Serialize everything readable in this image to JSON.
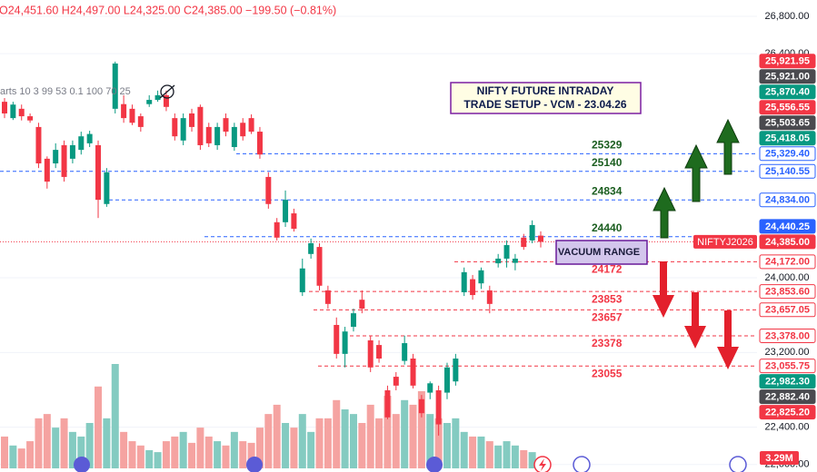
{
  "chart_data": {
    "type": "candlestick",
    "header": "O24,451.60 H24,497.00 L24,325.00 C24,385.00 −199.50 (−0.81%)",
    "header_color": "#f23645",
    "indicator_text": "arts 10 3 99 53 0.1 100 70 25",
    "title_lines": [
      "NIFTY FUTURE INTRADAY",
      "TRADE SETUP - VCM - 23.04.26"
    ],
    "zone_label": "VACUUM RANGE",
    "symbol_label": "NIFTYJ2026",
    "ylim": [
      21920,
      26975
    ],
    "yticks": [
      {
        "value": 26800,
        "label": "26,800.00"
      },
      {
        "value": 26400,
        "label": "26,400.00"
      },
      {
        "value": 24000,
        "label": "24,000.00"
      },
      {
        "value": 23200,
        "label": "23,200.00"
      },
      {
        "value": 22400,
        "label": "22,400.00"
      },
      {
        "value": 22000,
        "label": "22,000.00"
      }
    ],
    "grid": true,
    "up_color": "#089981",
    "down_color": "#f23645",
    "up_volume_color": "#84cbc1",
    "down_volume_color": "#f5a3a1",
    "open": [
      25885,
      25710,
      25810,
      25730,
      25615,
      25275,
      25225,
      25420,
      25275,
      25370,
      25440,
      25420,
      24790,
      25810,
      25860,
      25810,
      25730,
      25860,
      25905,
      25955,
      25710,
      25470,
      25760,
      25830,
      25615,
      25420,
      25710,
      25400,
      25660,
      25710,
      25565,
      25080,
      24595,
      24595,
      24690,
      23845,
      24255,
      24330,
      23865,
      23495,
      23185,
      23475,
      23765,
      23330,
      23280,
      22795,
      22940,
      23110,
      23135,
      22700,
      22770,
      22795,
      22770,
      22890,
      23845,
      23985,
      23940,
      23865,
      24155,
      24205,
      24160,
      24430,
      24400,
      24451.6
    ],
    "high": [
      25925,
      25885,
      25855,
      25760,
      25660,
      25300,
      25440,
      25470,
      25470,
      25565,
      25575,
      25470,
      25175,
      26315,
      25955,
      25855,
      25760,
      25955,
      26005,
      26005,
      25760,
      25760,
      25810,
      25855,
      25660,
      25660,
      25760,
      25660,
      25710,
      25750,
      25615,
      25130,
      24640,
      24935,
      24740,
      24205,
      24420,
      24370,
      23915,
      23575,
      23475,
      23670,
      23865,
      23380,
      23330,
      22845,
      22990,
      23380,
      23185,
      22745,
      22890,
      22845,
      23090,
      23185,
      24110,
      24030,
      24110,
      23915,
      24255,
      24400,
      24255,
      24470,
      24615,
      24497
    ],
    "low": [
      25710,
      25690,
      25685,
      25660,
      25175,
      24955,
      25175,
      25030,
      25225,
      25320,
      25400,
      24640,
      24760,
      25760,
      25660,
      25635,
      25565,
      25830,
      25885,
      25785,
      25470,
      25420,
      25565,
      25370,
      25400,
      25370,
      25515,
      25360,
      25470,
      25540,
      25275,
      24740,
      24400,
      24545,
      24495,
      23805,
      24205,
      23865,
      23670,
      23135,
      23040,
      23425,
      23620,
      22990,
      23090,
      22485,
      22795,
      23070,
      22815,
      22505,
      22700,
      22310,
      22700,
      22845,
      23805,
      23765,
      23880,
      23620,
      24110,
      24110,
      24080,
      24300,
      24370,
      24325
    ],
    "close": [
      25760,
      25855,
      25730,
      25685,
      25225,
      25030,
      25370,
      25080,
      25420,
      25515,
      25540,
      24835,
      25130,
      26295,
      25710,
      25660,
      25615,
      25905,
      25955,
      25830,
      25515,
      25710,
      25615,
      25420,
      25440,
      25615,
      25565,
      25615,
      25515,
      25565,
      25320,
      24790,
      24430,
      24835,
      24525,
      24100,
      24370,
      23915,
      23720,
      23185,
      23425,
      23620,
      23670,
      23040,
      23135,
      22505,
      22845,
      23300,
      22845,
      22550,
      22870,
      22430,
      23040,
      23135,
      24060,
      23815,
      24080,
      23720,
      24205,
      24350,
      24205,
      24330,
      24565,
      24385
    ],
    "volume": [
      9.6,
      6.9,
      6.0,
      8.2,
      15.1,
      16.4,
      12.3,
      15.1,
      11.0,
      9.6,
      13.7,
      24.7,
      15.1,
      31.5,
      11.0,
      8.2,
      6.9,
      5.5,
      4.9,
      8.2,
      9.6,
      11.0,
      7.7,
      12.3,
      9.6,
      8.2,
      6.9,
      11.0,
      8.2,
      7.7,
      12.3,
      16.4,
      19.2,
      13.7,
      12.3,
      16.4,
      11.0,
      15.1,
      15.1,
      20.6,
      17.8,
      16.4,
      13.7,
      19.2,
      15.1,
      21.9,
      16.4,
      20.6,
      19.2,
      23.3,
      16.4,
      15.1,
      13.7,
      15.1,
      11.0,
      9.6,
      9.6,
      8.2,
      6.9,
      8.2,
      6.9,
      5.5,
      4.9,
      3.29
    ],
    "volume_last_label": "3.29M",
    "resistance_levels": [
      25329,
      25140,
      24834,
      24440
    ],
    "support_levels": [
      24172,
      23853,
      23657,
      23378,
      23055
    ],
    "resistance_line_color": "#2962ff",
    "resistance_text_color": "#1b5e20",
    "support_color": "#f23645",
    "last_price": {
      "value": 24385,
      "label": "24,385.00",
      "color": "#f23645"
    },
    "price_labels": [
      {
        "value": 25921.95,
        "label": "25,921.95",
        "color": "#f23645",
        "style": "filled"
      },
      {
        "value": 25921.0,
        "label": "25,921.00",
        "color": "#4a4a4f",
        "style": "filled"
      },
      {
        "value": 25870.4,
        "label": "25,870.40",
        "color": "#089981",
        "style": "filled"
      },
      {
        "value": 25556.55,
        "label": "25,556.55",
        "color": "#f23645",
        "style": "filled"
      },
      {
        "value": 25503.65,
        "label": "25,503.65",
        "color": "#4a4a4f",
        "style": "filled"
      },
      {
        "value": 25418.05,
        "label": "25,418.05",
        "color": "#089981",
        "style": "filled"
      },
      {
        "value": 25329.4,
        "label": "25,329.40",
        "color": "#2962ff",
        "style": "outline"
      },
      {
        "value": 25140.55,
        "label": "25,140.55",
        "color": "#2962ff",
        "style": "outline"
      },
      {
        "value": 24834.0,
        "label": "24,834.00",
        "color": "#2962ff",
        "style": "outline"
      },
      {
        "value": 24440.25,
        "label": "24,440.25",
        "color": "#2962ff",
        "style": "filled"
      },
      {
        "value": 24172.0,
        "label": "24,172.00",
        "color": "#f23645",
        "style": "outline"
      },
      {
        "value": 23853.6,
        "label": "23,853.60",
        "color": "#f23645",
        "style": "outline"
      },
      {
        "value": 23657.05,
        "label": "23,657.05",
        "color": "#f23645",
        "style": "outline"
      },
      {
        "value": 23378.0,
        "label": "23,378.00",
        "color": "#f23645",
        "style": "outline"
      },
      {
        "value": 23055.75,
        "label": "23,055.75",
        "color": "#f23645",
        "style": "outline"
      },
      {
        "value": 22982.3,
        "label": "22,982.30",
        "color": "#089981",
        "style": "filled"
      },
      {
        "value": 22882.4,
        "label": "22,882.40",
        "color": "#4a4a4f",
        "style": "filled"
      },
      {
        "value": 22825.2,
        "label": "22,825.20",
        "color": "#f23645",
        "style": "filled"
      }
    ]
  }
}
